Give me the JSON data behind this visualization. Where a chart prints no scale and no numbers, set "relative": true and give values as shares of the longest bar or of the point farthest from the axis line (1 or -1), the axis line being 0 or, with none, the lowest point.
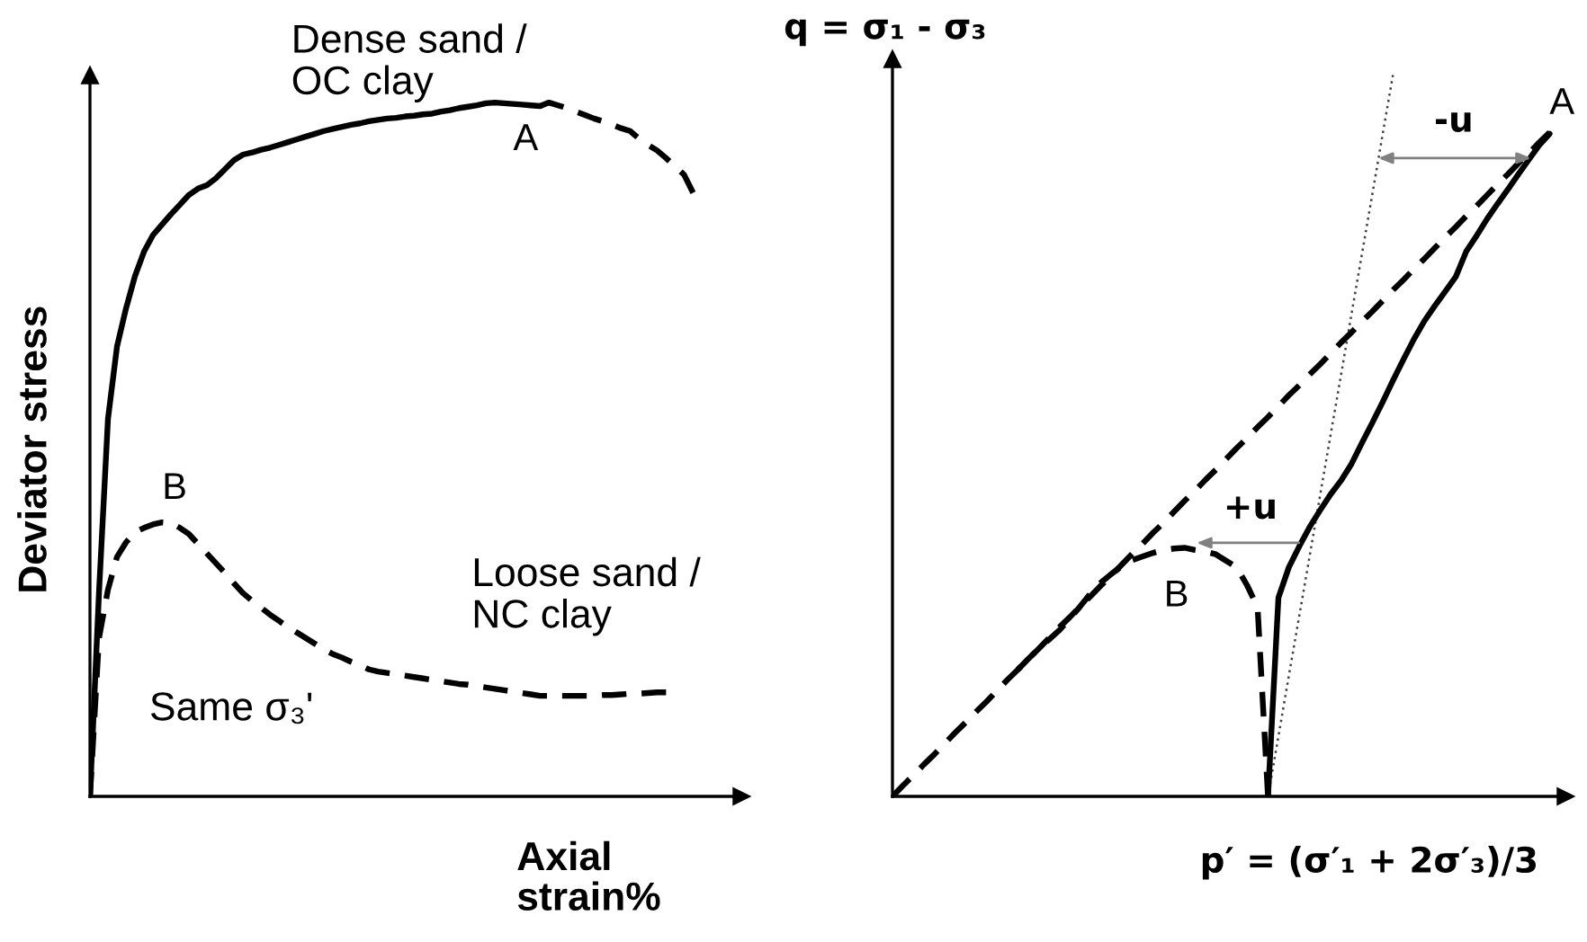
{
  "chart_data": [
    {
      "type": "line",
      "relative": true,
      "tick_labels": false,
      "xlabel": "Axial\nstrain%",
      "ylabel": "Deviator stress",
      "categories": [
        null,
        null,
        null,
        null,
        null,
        null,
        null,
        null,
        null,
        null,
        null,
        null,
        null,
        null,
        null,
        null,
        null,
        null,
        null,
        null,
        null,
        null,
        null,
        null,
        null,
        null,
        null,
        null,
        null,
        null,
        null,
        null,
        null,
        null,
        null,
        null,
        null,
        null,
        null,
        null,
        null,
        null,
        null,
        null,
        null,
        null,
        null,
        null,
        null,
        null,
        null,
        null,
        null,
        null,
        null,
        null,
        null,
        null,
        null,
        null,
        null,
        null,
        null,
        null,
        null,
        null,
        null,
        null
      ],
      "series": [
        {
          "color": "#000000",
          "line_style": "solid",
          "values": [
            0,
            0.293,
            0.544,
            0.648,
            0.703,
            0.75,
            0.785,
            0.809,
            0.824,
            0.839,
            0.853,
            0.867,
            0.876,
            0.881,
            0.891,
            0.904,
            0.917,
            0.925,
            0.928,
            0.932,
            0.935,
            0.939,
            0.943,
            0.947,
            0.951,
            0.955,
            0.959,
            0.962,
            0.965,
            0.968,
            0.97,
            0.973,
            0.975,
            0.977,
            0.978,
            0.98,
            0.981,
            0.983,
            0.984,
            0.987,
            0.989,
            0.992,
            0.994,
            0.996,
            0.999,
            1.0,
            0.999,
            0.998,
            0.997,
            0.996,
            0.995,
            null,
            null,
            null,
            null,
            null,
            null,
            null,
            null,
            null,
            null,
            null,
            null,
            null,
            null,
            null,
            null,
            null
          ]
        },
        {
          "color": "#000000",
          "line_style": "dashed",
          "values": [
            null,
            null,
            null,
            null,
            null,
            null,
            null,
            null,
            null,
            null,
            null,
            null,
            null,
            null,
            null,
            null,
            null,
            null,
            null,
            null,
            null,
            null,
            null,
            null,
            null,
            null,
            null,
            null,
            null,
            null,
            null,
            null,
            null,
            null,
            null,
            null,
            null,
            null,
            null,
            null,
            null,
            null,
            null,
            null,
            null,
            null,
            null,
            null,
            null,
            null,
            0.995,
            1.0,
            0.996,
            0.992,
            0.987,
            0.982,
            0.977,
            0.973,
            0.968,
            0.963,
            0.959,
            0.948,
            0.939,
            0.931,
            0.92,
            0.908,
            0.896,
            0.87
          ]
        },
        {
          "color": "#000000",
          "line_style": "dashed",
          "values": [
            0,
            0.228,
            0.298,
            0.345,
            0.366,
            0.381,
            0.387,
            0.392,
            0.395,
            0.394,
            0.387,
            0.378,
            0.364,
            0.35,
            0.336,
            0.322,
            0.307,
            0.293,
            0.282,
            0.272,
            0.262,
            0.253,
            0.244,
            0.236,
            0.228,
            0.22,
            0.212,
            0.205,
            0.2,
            0.194,
            0.189,
            0.183,
            0.18,
            0.178,
            0.176,
            0.174,
            0.172,
            0.17,
            0.168,
            0.166,
            0.164,
            0.162,
            0.161,
            0.159,
            0.157,
            0.155,
            0.153,
            0.151,
            0.149,
            0.147,
            0.145,
            0.145,
            0.145,
            0.145,
            0.145,
            0.145,
            0.145,
            0.146,
            0.146,
            0.147,
            0.148,
            0.148,
            0.149,
            0.15,
            0.15,
            null,
            null,
            null
          ]
        }
      ],
      "annotations": [
        "Dense sand /\nOC clay",
        "A",
        "B",
        "Loose sand /\nNC clay",
        "Same σ₃'"
      ]
    },
    {
      "type": "line",
      "relative": true,
      "tick_labels": false,
      "xlabel": "p′ = (σ′₁ + 2σ′₃)/3",
      "ylabel": "q = σ₁ - σ₃",
      "categories": [
        null,
        null,
        null,
        null,
        null,
        null,
        null,
        null,
        null,
        null,
        null,
        null,
        null,
        null,
        null,
        null,
        null,
        null,
        null,
        null,
        null,
        null,
        null,
        null,
        null,
        null,
        null,
        null,
        null,
        null,
        null,
        null,
        null,
        null,
        null,
        null,
        null,
        null,
        null,
        null,
        null,
        null,
        null,
        null,
        null,
        null,
        null,
        null,
        null,
        null,
        null,
        null,
        null,
        null,
        null,
        null,
        null,
        null,
        null,
        null,
        null,
        null,
        null,
        null
      ],
      "series": [
        {
          "color": "#404040",
          "line_style": "dotted",
          "values": [
            null,
            null,
            null,
            null,
            null,
            null,
            null,
            null,
            null,
            null,
            null,
            null,
            null,
            null,
            null,
            null,
            null,
            null,
            null,
            null,
            null,
            null,
            null,
            null,
            null,
            null,
            null,
            null,
            null,
            null,
            null,
            null,
            null,
            null,
            null,
            null,
            0,
            0.083,
            0.167,
            0.25,
            0.333,
            0.417,
            0.5,
            0.583,
            0.667,
            0.75,
            0.833,
            0.917,
            1.0,
            null,
            null,
            null,
            null,
            null,
            null,
            null,
            null,
            null,
            null,
            null,
            null,
            null,
            null,
            null
          ]
        },
        {
          "color": "#000000",
          "line_style": "dashed",
          "values": [
            0,
            0.015,
            0.029,
            0.044,
            0.058,
            0.073,
            0.088,
            0.102,
            0.117,
            0.131,
            0.146,
            0.161,
            0.175,
            0.19,
            0.204,
            0.219,
            0.234,
            0.248,
            0.263,
            0.277,
            0.292,
            0.306,
            0.321,
            0.336,
            0.35,
            0.365,
            0.379,
            0.394,
            0.409,
            0.423,
            0.438,
            0.452,
            0.467,
            0.482,
            0.496,
            0.511,
            0.525,
            0.54,
            0.555,
            0.569,
            0.584,
            0.598,
            0.613,
            0.628,
            0.642,
            0.657,
            0.671,
            0.686,
            0.701,
            0.715,
            0.73,
            0.744,
            0.759,
            0.774,
            0.788,
            0.803,
            0.817,
            0.832,
            0.847,
            0.861,
            0.876,
            0.89,
            0.905,
            0.919
          ]
        },
        {
          "color": "#000000",
          "line_style": "solid",
          "values": [
            null,
            null,
            null,
            null,
            null,
            null,
            null,
            null,
            null,
            null,
            null,
            null,
            null,
            null,
            null,
            null,
            null,
            null,
            null,
            null,
            null,
            null,
            null,
            null,
            null,
            null,
            null,
            null,
            null,
            null,
            null,
            null,
            null,
            null,
            null,
            null,
            0,
            0.275,
            0.317,
            0.346,
            0.373,
            0.396,
            0.418,
            0.437,
            0.46,
            0.489,
            0.517,
            0.546,
            0.576,
            0.605,
            0.633,
            0.658,
            0.679,
            0.699,
            0.719,
            0.754,
            0.776,
            0.799,
            0.82,
            0.84,
            0.861,
            0.881,
            0.901,
            0.917
          ]
        },
        {
          "color": "#000000",
          "line_style": "dashed",
          "values": [
            null,
            null,
            null,
            null,
            null,
            null,
            null,
            null,
            null,
            null,
            null,
            null,
            0.175,
            0.19,
            0.204,
            0.217,
            0.23,
            0.246,
            0.263,
            0.281,
            0.296,
            0.308,
            0.319,
            0.327,
            0.332,
            0.337,
            0.341,
            0.343,
            0.344,
            0.341,
            0.339,
            0.335,
            0.326,
            0.317,
            0.292,
            0.262,
            0,
            null,
            null,
            null,
            null,
            null,
            null,
            null,
            null,
            null,
            null,
            null,
            null,
            null,
            null,
            null,
            null,
            null,
            null,
            null,
            null,
            null,
            null,
            null,
            null,
            null,
            null,
            null
          ]
        }
      ],
      "annotations": [
        "-u",
        "+u",
        "A",
        "B"
      ]
    }
  ]
}
